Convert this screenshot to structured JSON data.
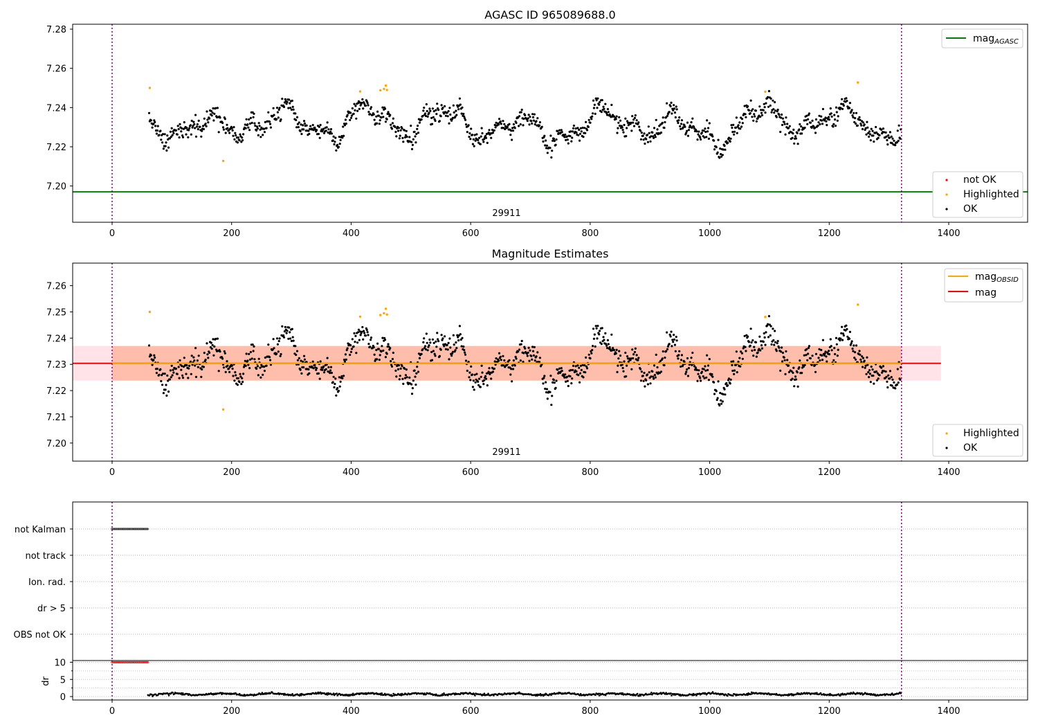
{
  "colors": {
    "ok": "#000000",
    "highlighted": "#ffa500",
    "not_ok": "#ff0000",
    "mag_agasc": "#008000",
    "mag_obsid": "#ffa500",
    "mag": "#ff0000",
    "obs_marker": "#800080",
    "band_mag": "#ffc0cb",
    "band_obsid": "#ffa07a"
  },
  "chart_data": [
    {
      "type": "scatter",
      "title": "AGASC ID 965089688.0",
      "xlabel": "",
      "ylabel": "",
      "xlim": [
        -66,
        1532
      ],
      "ylim": [
        7.1815,
        7.2825
      ],
      "xticks": [
        "0",
        "200",
        "400",
        "600",
        "800",
        "1000",
        "1200",
        "1400"
      ],
      "yticks": [
        "7.20",
        "7.22",
        "7.24",
        "7.26",
        "7.28"
      ],
      "obsid_label": "29911",
      "obsid_boundaries": [
        0,
        1321
      ],
      "series": [
        {
          "name": "OK",
          "x_range": [
            62,
            1320
          ],
          "mean": 7.2305
        },
        {
          "name": "Highlighted",
          "points": [
            [
              63,
              7.25
            ],
            [
              186,
              7.2128
            ],
            [
              415,
              7.2482
            ],
            [
              449,
              7.2488
            ],
            [
              455,
              7.2495
            ],
            [
              458,
              7.2512
            ],
            [
              460,
              7.249
            ],
            [
              1093,
              7.2481
            ],
            [
              1248,
              7.2528
            ]
          ]
        }
      ],
      "lines": [
        {
          "name": "mag_AGASC",
          "y": 7.197,
          "x_range": [
            -66,
            1532
          ]
        }
      ],
      "legend_upper": [
        {
          "label": "mag",
          "sub": "AGASC",
          "kind": "line",
          "color": "#008000"
        }
      ],
      "legend_lower": [
        {
          "label": "not OK",
          "kind": "point",
          "color": "#ff0000"
        },
        {
          "label": "Highlighted",
          "kind": "point",
          "color": "#ffa500"
        },
        {
          "label": "OK",
          "kind": "point",
          "color": "#000000"
        }
      ]
    },
    {
      "type": "scatter",
      "title": "Magnitude Estimates",
      "xlabel": "",
      "ylabel": "",
      "xlim": [
        -66,
        1532
      ],
      "ylim": [
        7.1931,
        7.2686
      ],
      "xticks": [
        "0",
        "200",
        "400",
        "600",
        "800",
        "1000",
        "1200",
        "1400"
      ],
      "yticks": [
        "7.20",
        "7.21",
        "7.22",
        "7.23",
        "7.24",
        "7.25",
        "7.26"
      ],
      "obsid_label": "29911",
      "obsid_boundaries": [
        0,
        1321
      ],
      "series": [
        {
          "name": "OK",
          "x_range": [
            62,
            1320
          ],
          "mean": 7.2305
        },
        {
          "name": "Highlighted",
          "points": [
            [
              63,
              7.25
            ],
            [
              186,
              7.2128
            ],
            [
              415,
              7.2482
            ],
            [
              449,
              7.2488
            ],
            [
              455,
              7.2495
            ],
            [
              458,
              7.2512
            ],
            [
              460,
              7.249
            ],
            [
              1093,
              7.2481
            ],
            [
              1248,
              7.2528
            ]
          ]
        }
      ],
      "lines": [
        {
          "name": "mag",
          "y": 7.2304,
          "x_range": [
            -66,
            1387
          ]
        },
        {
          "name": "mag_OBSID",
          "y": 7.2304,
          "x_range": [
            0,
            1321
          ]
        }
      ],
      "bands": [
        {
          "name": "mag range",
          "y": [
            7.2238,
            7.237
          ],
          "x_range": [
            -66,
            1387
          ]
        },
        {
          "name": "mag_OBSID range",
          "y": [
            7.2238,
            7.237
          ],
          "x_range": [
            0,
            1321
          ]
        }
      ],
      "legend_upper": [
        {
          "label": "mag",
          "sub": "OBSID",
          "kind": "line",
          "color": "#ffa500"
        },
        {
          "label": "mag",
          "sub": "",
          "kind": "line",
          "color": "#ff0000"
        }
      ],
      "legend_lower": [
        {
          "label": "Highlighted",
          "kind": "point",
          "color": "#ffa500"
        },
        {
          "label": "OK",
          "kind": "point",
          "color": "#000000"
        }
      ]
    },
    {
      "type": "scatter",
      "title": "",
      "xlim": [
        -66,
        1532
      ],
      "categories": [
        "not Kalman",
        "not track",
        "Ion. rad.",
        "dr > 5",
        "OBS not OK"
      ],
      "flags": [
        {
          "category": "not Kalman",
          "x_range": [
            0,
            60
          ]
        }
      ],
      "obsid_boundaries": [
        0,
        1321
      ]
    },
    {
      "type": "scatter",
      "title": "",
      "ylabel": "dr",
      "xlim": [
        -66,
        1532
      ],
      "ylim": [
        -1,
        10.5
      ],
      "xticks": [
        "0",
        "200",
        "400",
        "600",
        "800",
        "1000",
        "1200",
        "1400"
      ],
      "yticks": [
        "0",
        "5",
        "10"
      ],
      "series": [
        {
          "name": "dr",
          "x_range": [
            60,
            1320
          ],
          "approx_value": 0.7
        },
        {
          "name": "dr clipped",
          "x_range": [
            0,
            60
          ],
          "value": 10,
          "color": "#ff0000"
        }
      ],
      "obsid_boundaries": [
        0,
        1321
      ]
    }
  ]
}
